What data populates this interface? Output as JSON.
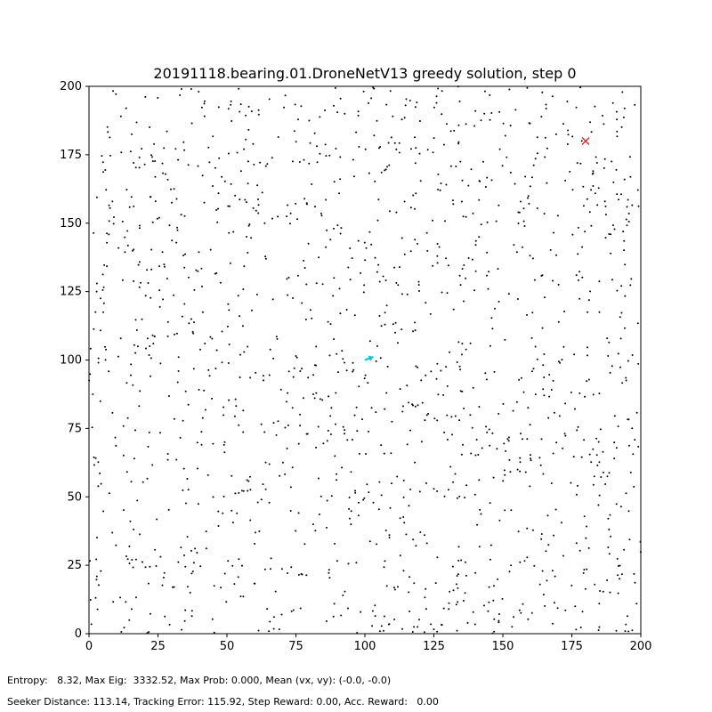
{
  "chart_data": {
    "type": "scatter",
    "title": "20191118.bearing.01.DroneNetV13 greedy solution, step 0",
    "xlabel": "",
    "ylabel": "",
    "xlim": [
      0,
      200
    ],
    "ylim": [
      0,
      200
    ],
    "xticks": [
      0,
      25,
      50,
      75,
      100,
      125,
      150,
      175,
      200
    ],
    "yticks": [
      0,
      25,
      50,
      75,
      100,
      125,
      150,
      175,
      200
    ],
    "grid": false,
    "particles": {
      "marker_color": "#000000",
      "sample_count": 1500,
      "distribution": "uniform random"
    },
    "target": {
      "marker": "x",
      "color": "#d62728",
      "x": 180,
      "y": 180
    },
    "seeker": {
      "marker": "arrow",
      "color": "#17becf",
      "x": 100,
      "y": 100,
      "heading_deg": 20
    }
  },
  "status": {
    "line1": "Entropy:   8.32, Max Eig:  3332.52, Max Prob: 0.000, Mean (vx, vy): (-0.0, -0.0)",
    "line2": "Seeker Distance: 113.14, Tracking Error: 115.92, Step Reward: 0.00, Acc. Reward:   0.00"
  }
}
